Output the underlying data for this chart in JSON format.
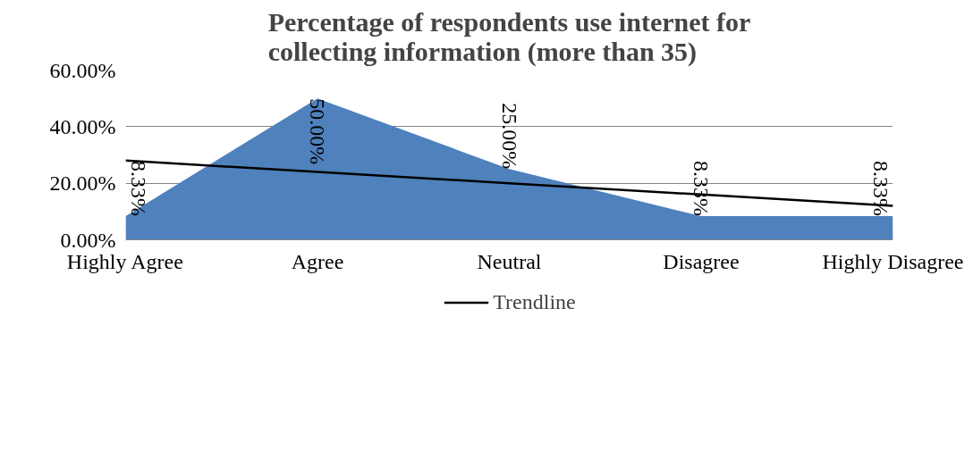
{
  "chart_data": {
    "type": "area",
    "title": "Percentage of respondents use internet for collecting information (more than 35)",
    "categories": [
      "Highly Agree",
      "Agree",
      "Neutral",
      "Disagree",
      "Highly Disagree"
    ],
    "series": [
      {
        "color": "#4f81bd",
        "values": [
          8.33,
          50,
          25,
          8.33,
          8.33
        ],
        "value_labels": [
          "8.33%",
          "50.00%",
          "25.00%",
          "8.33%",
          "8.33%"
        ]
      },
      {
        "name": "Trendline",
        "type": "line",
        "color": "#000000",
        "values": [
          28,
          24,
          20,
          16,
          12
        ]
      }
    ],
    "ylim": [
      0,
      60
    ],
    "yticks": [
      {
        "value": 0,
        "label": "0.00%"
      },
      {
        "value": 20,
        "label": "20.00%"
      },
      {
        "value": 40,
        "label": "40.00%"
      },
      {
        "value": 60,
        "label": "60.00%"
      }
    ],
    "grid": "y",
    "legend": "bottom"
  }
}
